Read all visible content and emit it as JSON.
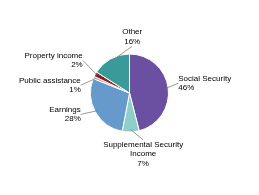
{
  "chart_data": {
    "type": "pie",
    "categories": [
      "Social Security",
      "Supplemental Security\nIncome",
      "Earnings",
      "Public assistance",
      "Property income",
      "Other"
    ],
    "values": [
      46,
      7,
      28,
      1,
      2,
      16
    ],
    "value_labels": [
      "46%",
      "7%",
      "28%",
      "1%",
      "2%",
      "16%"
    ],
    "colors": [
      "#6b4fa0",
      "#8ecfcc",
      "#6699cc",
      "#cc99bb",
      "#8b2020",
      "#3a9999"
    ],
    "data_labels": true
  }
}
